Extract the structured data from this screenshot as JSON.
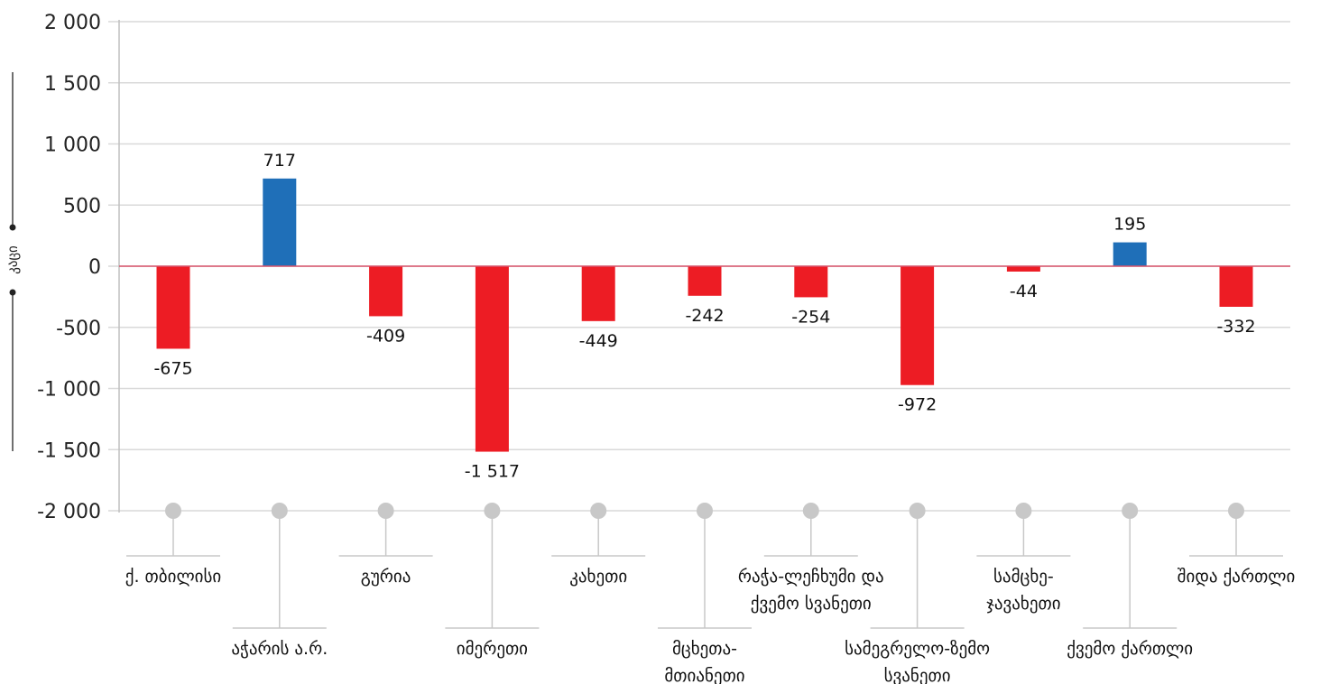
{
  "chart_data": {
    "type": "bar",
    "ylabel": "კაცი",
    "ylim": [
      -2000,
      2000
    ],
    "yticks": [
      2000,
      1500,
      1000,
      500,
      0,
      -500,
      -1000,
      -1500,
      -2000
    ],
    "ytick_labels": [
      "2 000",
      "1 500",
      "1 000",
      "500",
      "0",
      "-500",
      "-1 000",
      "-1 500",
      "-2 000"
    ],
    "categories": [
      {
        "lines": [
          "ქ. თბილისი"
        ],
        "tier": 1
      },
      {
        "lines": [
          "აჭარის ა.რ."
        ],
        "tier": 2
      },
      {
        "lines": [
          "გურია"
        ],
        "tier": 1
      },
      {
        "lines": [
          "იმერეთი"
        ],
        "tier": 2
      },
      {
        "lines": [
          "კახეთი"
        ],
        "tier": 1
      },
      {
        "lines": [
          "მცხეთა-",
          "მთიანეთი"
        ],
        "tier": 2
      },
      {
        "lines": [
          "რაჭა-ლეჩხუმი და",
          "ქვემო სვანეთი"
        ],
        "tier": 1
      },
      {
        "lines": [
          "სამეგრელო-ზემო",
          "სვანეთი"
        ],
        "tier": 2
      },
      {
        "lines": [
          "სამცხე-",
          "ჯავახეთი"
        ],
        "tier": 1
      },
      {
        "lines": [
          "ქვემო ქართლი"
        ],
        "tier": 2
      },
      {
        "lines": [
          "შიდა ქართლი"
        ],
        "tier": 1
      }
    ],
    "values": [
      -675,
      717,
      -409,
      -1517,
      -449,
      -242,
      -254,
      -972,
      -44,
      195,
      -332
    ],
    "value_labels": [
      "-675",
      "717",
      "-409",
      "-1 517",
      "-449",
      "-242",
      "-254",
      "-972",
      "-44",
      "195",
      "-332"
    ],
    "colors": {
      "positive": "#1f6fb8",
      "negative": "#ed1c24",
      "zero_line": "#d9536b",
      "grid": "#d9d9d9",
      "connector": "#c8c8c8"
    },
    "grid": true
  }
}
